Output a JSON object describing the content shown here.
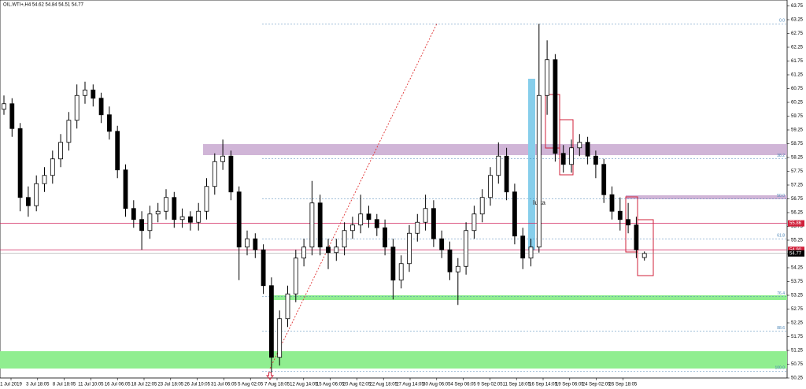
{
  "chart_data": {
    "type": "candlestick",
    "title": "OIL.WTI+,H4  54.62 54.84 54.51 54.77",
    "ylim": [
      50.25,
      63.75
    ],
    "yticks": [
      63.75,
      63.25,
      62.75,
      62.25,
      61.75,
      61.25,
      60.75,
      60.25,
      59.75,
      59.25,
      58.75,
      58.25,
      57.75,
      57.25,
      56.75,
      56.25,
      55.75,
      55.25,
      54.75,
      54.25,
      53.75,
      53.25,
      52.75,
      52.25,
      51.75,
      51.25,
      50.75,
      50.25
    ],
    "categories": [
      "1 Jul 2019",
      "3 Jul 18:05",
      "8 Jul 18:05",
      "11 Jul 10:05",
      "16 Jul 06:05",
      "18 Jul 22:05",
      "23 Jul 18:05",
      "26 Jul 10:05",
      "31 Jul 06:05",
      "5 Aug 02:05",
      "7 Aug 18:05",
      "12 Aug 14:05",
      "15 Aug 06:05",
      "20 Aug 02:05",
      "22 Aug 18:05",
      "27 Aug 14:05",
      "30 Aug 06:05",
      "4 Sep 06:05",
      "9 Sep 02:05",
      "11 Sep 18:05",
      "16 Sep 14:05",
      "19 Sep 06:05",
      "24 Sep 02:05",
      "26 Sep 18:05"
    ],
    "ohlc": [
      [
        60.0,
        60.5,
        59.8,
        60.2
      ],
      [
        60.2,
        60.4,
        59.0,
        59.3
      ],
      [
        59.3,
        59.5,
        56.3,
        56.8
      ],
      [
        56.8,
        57.2,
        56.1,
        56.5
      ],
      [
        56.5,
        57.6,
        56.3,
        57.3
      ],
      [
        57.3,
        57.9,
        57.0,
        57.6
      ],
      [
        57.6,
        58.5,
        57.3,
        58.2
      ],
      [
        58.2,
        59.1,
        57.9,
        58.8
      ],
      [
        58.8,
        59.9,
        58.5,
        59.6
      ],
      [
        59.6,
        60.9,
        59.3,
        60.5
      ],
      [
        60.5,
        61.0,
        60.2,
        60.7
      ],
      [
        60.7,
        60.9,
        60.1,
        60.4
      ],
      [
        60.4,
        60.6,
        59.5,
        59.8
      ],
      [
        59.8,
        60.1,
        58.9,
        59.2
      ],
      [
        59.2,
        59.4,
        57.5,
        57.8
      ],
      [
        57.8,
        58.0,
        56.1,
        56.4
      ],
      [
        56.4,
        56.7,
        55.7,
        56.0
      ],
      [
        56.0,
        56.3,
        54.9,
        55.6
      ],
      [
        55.6,
        56.5,
        55.3,
        56.2
      ],
      [
        56.2,
        56.6,
        55.9,
        56.3
      ],
      [
        56.3,
        57.1,
        56.0,
        56.8
      ],
      [
        56.8,
        57.0,
        55.7,
        56.0
      ],
      [
        56.0,
        56.4,
        55.7,
        56.1
      ],
      [
        56.1,
        56.3,
        55.6,
        55.9
      ],
      [
        55.9,
        56.6,
        55.6,
        56.3
      ],
      [
        56.3,
        57.5,
        56.0,
        57.2
      ],
      [
        57.2,
        58.4,
        56.9,
        58.1
      ],
      [
        58.1,
        58.9,
        57.8,
        58.3
      ],
      [
        58.3,
        58.5,
        56.7,
        57.0
      ],
      [
        57.0,
        57.2,
        53.8,
        55.0
      ],
      [
        55.0,
        55.6,
        54.7,
        55.3
      ],
      [
        55.3,
        55.5,
        54.6,
        54.9
      ],
      [
        54.9,
        55.1,
        53.3,
        53.6
      ],
      [
        53.6,
        53.9,
        50.45,
        51.0
      ],
      [
        51.0,
        52.7,
        50.7,
        52.4
      ],
      [
        52.4,
        53.6,
        52.1,
        53.3
      ],
      [
        53.3,
        54.9,
        53.0,
        54.6
      ],
      [
        54.6,
        55.3,
        54.3,
        55.0
      ],
      [
        55.0,
        57.4,
        54.7,
        56.6
      ],
      [
        56.6,
        56.9,
        54.7,
        55.0
      ],
      [
        55.0,
        55.3,
        54.2,
        54.8
      ],
      [
        54.8,
        55.3,
        54.5,
        55.0
      ],
      [
        55.0,
        55.9,
        54.7,
        55.6
      ],
      [
        55.6,
        56.1,
        55.3,
        55.8
      ],
      [
        55.8,
        56.9,
        55.5,
        56.2
      ],
      [
        56.2,
        56.5,
        55.7,
        56.0
      ],
      [
        56.0,
        56.2,
        55.4,
        55.7
      ],
      [
        55.7,
        56.0,
        54.7,
        55.0
      ],
      [
        55.0,
        55.3,
        53.1,
        53.8
      ],
      [
        53.8,
        54.7,
        53.5,
        54.4
      ],
      [
        54.4,
        55.8,
        54.1,
        55.5
      ],
      [
        55.5,
        56.2,
        55.2,
        55.9
      ],
      [
        55.9,
        56.9,
        55.6,
        56.4
      ],
      [
        56.4,
        56.7,
        55.0,
        55.3
      ],
      [
        55.3,
        55.6,
        54.6,
        54.9
      ],
      [
        54.9,
        55.2,
        53.8,
        54.1
      ],
      [
        54.1,
        54.6,
        52.9,
        54.3
      ],
      [
        54.3,
        55.9,
        54.0,
        55.6
      ],
      [
        55.6,
        56.5,
        55.3,
        56.2
      ],
      [
        56.2,
        57.1,
        55.9,
        56.8
      ],
      [
        56.8,
        57.9,
        56.5,
        57.6
      ],
      [
        57.6,
        58.8,
        57.3,
        58.3
      ],
      [
        58.3,
        58.6,
        56.7,
        57.0
      ],
      [
        57.0,
        57.3,
        55.1,
        55.4
      ],
      [
        55.4,
        55.7,
        54.2,
        54.6
      ],
      [
        54.6,
        55.3,
        54.3,
        55.0
      ],
      [
        55.0,
        63.1,
        54.8,
        60.5
      ],
      [
        60.5,
        62.5,
        59.8,
        61.8
      ],
      [
        61.8,
        62.0,
        58.1,
        58.4
      ],
      [
        58.4,
        58.7,
        57.7,
        58.0
      ],
      [
        58.0,
        58.9,
        57.7,
        58.6
      ],
      [
        58.6,
        59.1,
        58.3,
        58.8
      ],
      [
        58.8,
        59.0,
        58.0,
        58.3
      ],
      [
        58.3,
        58.5,
        57.5,
        58.0
      ],
      [
        58.0,
        58.2,
        56.6,
        56.9
      ],
      [
        56.9,
        57.2,
        56.0,
        56.3
      ],
      [
        56.3,
        56.8,
        55.6,
        56.0
      ],
      [
        56.0,
        56.6,
        55.5,
        55.8
      ],
      [
        55.8,
        56.1,
        54.6,
        54.9
      ],
      [
        54.62,
        54.84,
        54.51,
        54.77
      ]
    ],
    "fib_levels": [
      {
        "level": "0.0",
        "price": 63.1
      },
      {
        "level": "38.2",
        "price": 58.2
      },
      {
        "level": "50.0",
        "price": 56.75
      },
      {
        "level": "61.8",
        "price": 55.3
      },
      {
        "level": "76.4",
        "price": 53.2
      },
      {
        "level": "88.6",
        "price": 51.95
      },
      {
        "level": "100.0",
        "price": 50.5
      }
    ],
    "price_lines": [
      55.86,
      {
        "value": 54.9,
        "label": "54.90"
      }
    ],
    "last_price": 54.77,
    "annotation": "luka"
  }
}
